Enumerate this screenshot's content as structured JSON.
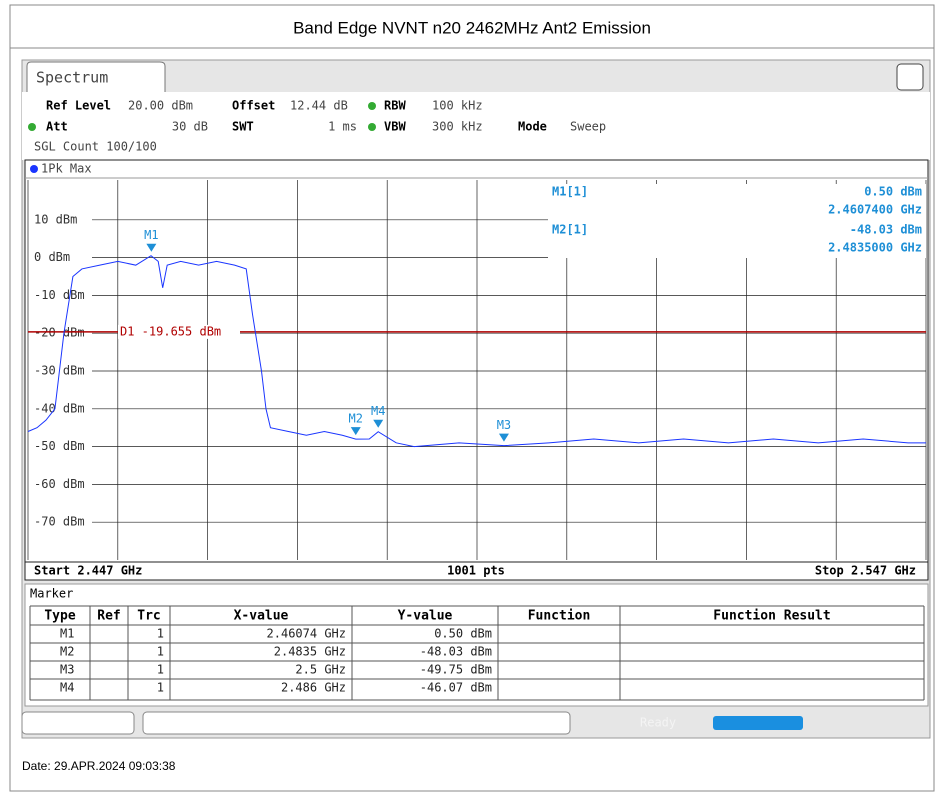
{
  "header": {
    "title": "Band Edge NVNT n20 2462MHz Ant2 Emission"
  },
  "tab": "Spectrum",
  "settings": {
    "ref_level_label": "Ref Level",
    "ref_level": "20.00 dBm",
    "offset_label": "Offset",
    "offset": "12.44 dB",
    "rbw_label": "RBW",
    "rbw": "100 kHz",
    "att_label": "Att",
    "att": "30 dB",
    "swt_label": "SWT",
    "swt": "1 ms",
    "vbw_label": "VBW",
    "vbw": "300 kHz",
    "mode_label": "Mode",
    "mode": "Sweep",
    "count": "SGL Count 100/100",
    "trace": "1Pk Max"
  },
  "readout": [
    {
      "name": "M1[1]",
      "y": "0.50 dBm",
      "x": "2.4607400 GHz"
    },
    {
      "name": "M2[1]",
      "y": "-48.03 dBm",
      "x": "2.4835000 GHz"
    }
  ],
  "chart_data": {
    "type": "line",
    "xlim": [
      2.447,
      2.547
    ],
    "xticks": [
      2.447,
      2.457,
      2.467,
      2.477,
      2.487,
      2.497,
      2.507,
      2.517,
      2.527,
      2.537,
      2.547
    ],
    "ylim": [
      -80,
      20
    ],
    "yticks": [
      {
        "value": 10,
        "label": "10 dBm"
      },
      {
        "value": 0,
        "label": "0 dBm"
      },
      {
        "value": -10,
        "label": "-10 dBm"
      },
      {
        "value": -20,
        "label": "-20 dBm"
      },
      {
        "value": -30,
        "label": "-30 dBm"
      },
      {
        "value": -40,
        "label": "-40 dBm"
      },
      {
        "value": -50,
        "label": "-50 dBm"
      },
      {
        "value": -60,
        "label": "-60 dBm"
      },
      {
        "value": -70,
        "label": "-70 dBm"
      }
    ],
    "grid": true,
    "x": [
      2.447,
      2.448,
      2.449,
      2.45,
      2.451,
      2.452,
      2.453,
      2.455,
      2.457,
      2.459,
      2.4607,
      2.4615,
      2.462,
      2.4625,
      2.464,
      2.466,
      2.468,
      2.47,
      2.4713,
      2.472,
      2.473,
      2.4735,
      2.474,
      2.476,
      2.478,
      2.48,
      2.482,
      2.4835,
      2.485,
      2.486,
      2.488,
      2.49,
      2.495,
      2.5,
      2.505,
      2.51,
      2.515,
      2.52,
      2.525,
      2.53,
      2.535,
      2.54,
      2.545,
      2.547
    ],
    "series": [
      {
        "name": "1Pk Max",
        "color": "#1a35ff",
        "values": [
          -46,
          -45,
          -43,
          -40,
          -20,
          -5,
          -3,
          -2,
          -1,
          -2,
          0.5,
          -1,
          -8,
          -2,
          -1,
          -2,
          -1,
          -2,
          -3,
          -15,
          -30,
          -40,
          -45,
          -46,
          -47,
          -46,
          -47,
          -48.03,
          -48,
          -46.07,
          -49,
          -50,
          -49,
          -49.75,
          -49,
          -48,
          -49,
          -48,
          -49,
          -48,
          -49,
          -48,
          -49,
          -49
        ]
      }
    ],
    "display_line": {
      "label": "D1 -19.655 dBm",
      "value": -19.655,
      "color": "#b00000"
    },
    "markers": [
      {
        "name": "M1",
        "x": 2.46074,
        "y": 0.5
      },
      {
        "name": "M2",
        "x": 2.4835,
        "y": -48.03
      },
      {
        "name": "M3",
        "x": 2.5,
        "y": -49.75
      },
      {
        "name": "M4",
        "x": 2.486,
        "y": -46.07
      }
    ],
    "start": "Start 2.447 GHz",
    "points": "1001 pts",
    "stop": "Stop 2.547 GHz"
  },
  "marker_table": {
    "title": "Marker",
    "columns": [
      "Type",
      "Ref",
      "Trc",
      "X-value",
      "Y-value",
      "Function",
      "Function Result"
    ],
    "rows": [
      [
        "M1",
        "",
        "1",
        "2.46074 GHz",
        "0.50 dBm",
        "",
        ""
      ],
      [
        "M2",
        "",
        "1",
        "2.4835 GHz",
        "-48.03 dBm",
        "",
        ""
      ],
      [
        "M3",
        "",
        "1",
        "2.5 GHz",
        "-49.75 dBm",
        "",
        ""
      ],
      [
        "M4",
        "",
        "1",
        "2.486 GHz",
        "-46.07 dBm",
        "",
        ""
      ]
    ]
  },
  "status": "Ready",
  "footer": {
    "date": "Date: 29.APR.2024  09:03:38"
  }
}
